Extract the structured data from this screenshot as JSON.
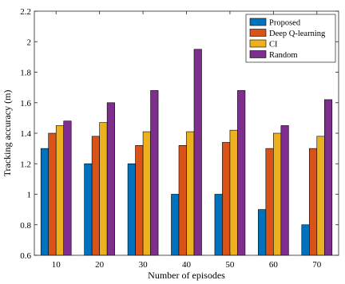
{
  "chart_data": {
    "type": "bar",
    "title": "",
    "xlabel": "Number of episodes",
    "ylabel": "Tracking accuracy (m)",
    "categories": [
      "10",
      "20",
      "30",
      "40",
      "50",
      "60",
      "70"
    ],
    "ylim": [
      0.6,
      2.2
    ],
    "yticks": [
      "0.6",
      "0.8",
      "1",
      "1.2",
      "1.4",
      "1.6",
      "1.8",
      "2",
      "2.2"
    ],
    "grid": false,
    "legend_position": "top-right",
    "series": [
      {
        "name": "Proposed",
        "color": "#0072BD",
        "values": [
          1.3,
          1.2,
          1.2,
          1.0,
          1.0,
          0.9,
          0.8
        ]
      },
      {
        "name": "Deep Q-learning",
        "color": "#D95319",
        "values": [
          1.4,
          1.38,
          1.32,
          1.32,
          1.34,
          1.3,
          1.3
        ]
      },
      {
        "name": "CI",
        "color": "#EDB120",
        "values": [
          1.45,
          1.47,
          1.41,
          1.41,
          1.42,
          1.4,
          1.38
        ]
      },
      {
        "name": "Random",
        "color": "#7E2F8E",
        "values": [
          1.48,
          1.6,
          1.68,
          1.95,
          1.68,
          1.45,
          1.62
        ]
      }
    ]
  }
}
